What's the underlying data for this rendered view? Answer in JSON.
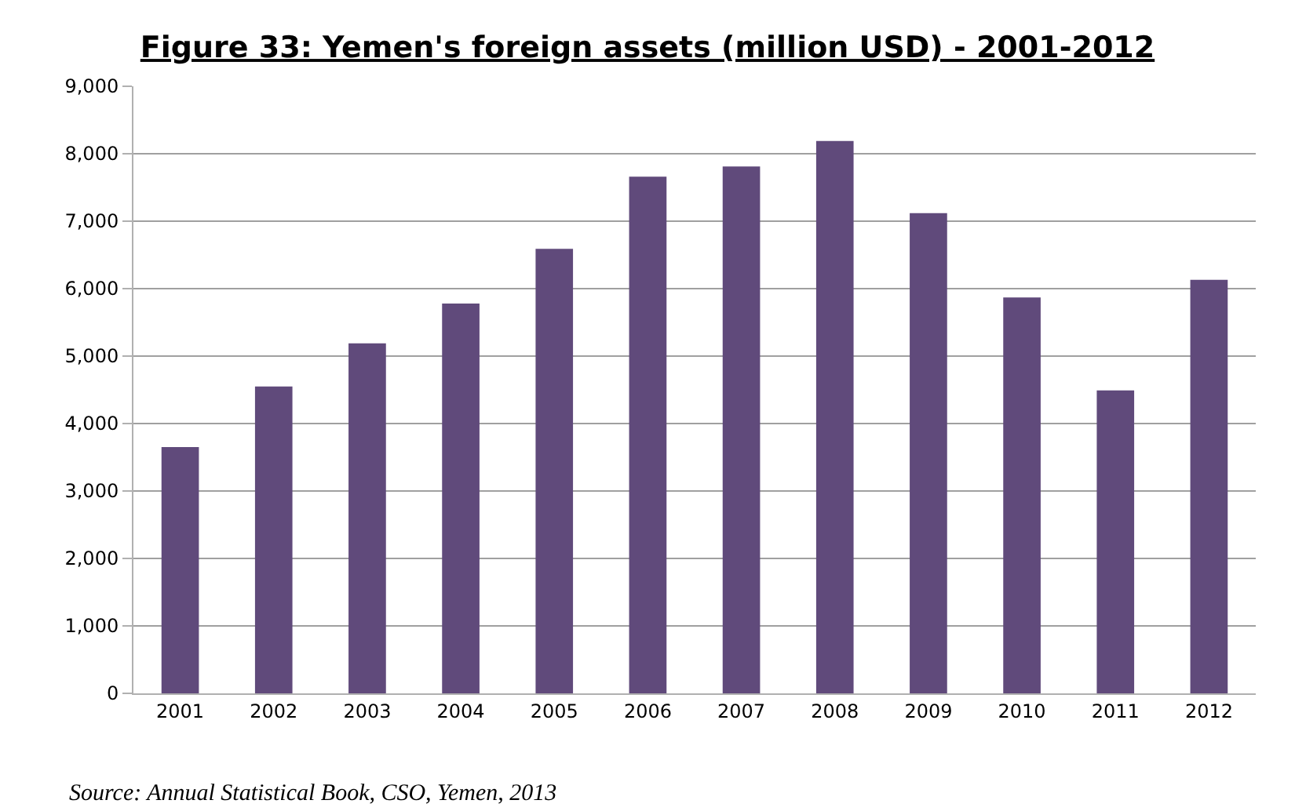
{
  "chart_data": {
    "type": "bar",
    "title": "Figure 33: Yemen's foreign assets (million USD) - 2001-2012",
    "categories": [
      "2001",
      "2002",
      "2003",
      "2004",
      "2005",
      "2006",
      "2007",
      "2008",
      "2009",
      "2010",
      "2011",
      "2012"
    ],
    "values": [
      3650,
      4550,
      5190,
      5780,
      6590,
      7660,
      7810,
      8190,
      7120,
      5870,
      4490,
      6130
    ],
    "color": "#604a7b",
    "ylim": [
      0,
      9000
    ],
    "yticks": [
      {
        "value": 0,
        "label": "0"
      },
      {
        "value": 1000,
        "label": "1,000"
      },
      {
        "value": 2000,
        "label": "2,000"
      },
      {
        "value": 3000,
        "label": "3,000"
      },
      {
        "value": 4000,
        "label": "4,000"
      },
      {
        "value": 5000,
        "label": "5,000"
      },
      {
        "value": 6000,
        "label": "6,000"
      },
      {
        "value": 7000,
        "label": "7,000"
      },
      {
        "value": 8000,
        "label": "8,000"
      },
      {
        "value": 9000,
        "label": "9,000"
      }
    ],
    "grid": "y",
    "annotations": [
      "Source: Annual Statistical Book, CSO, Yemen, 2013"
    ]
  }
}
